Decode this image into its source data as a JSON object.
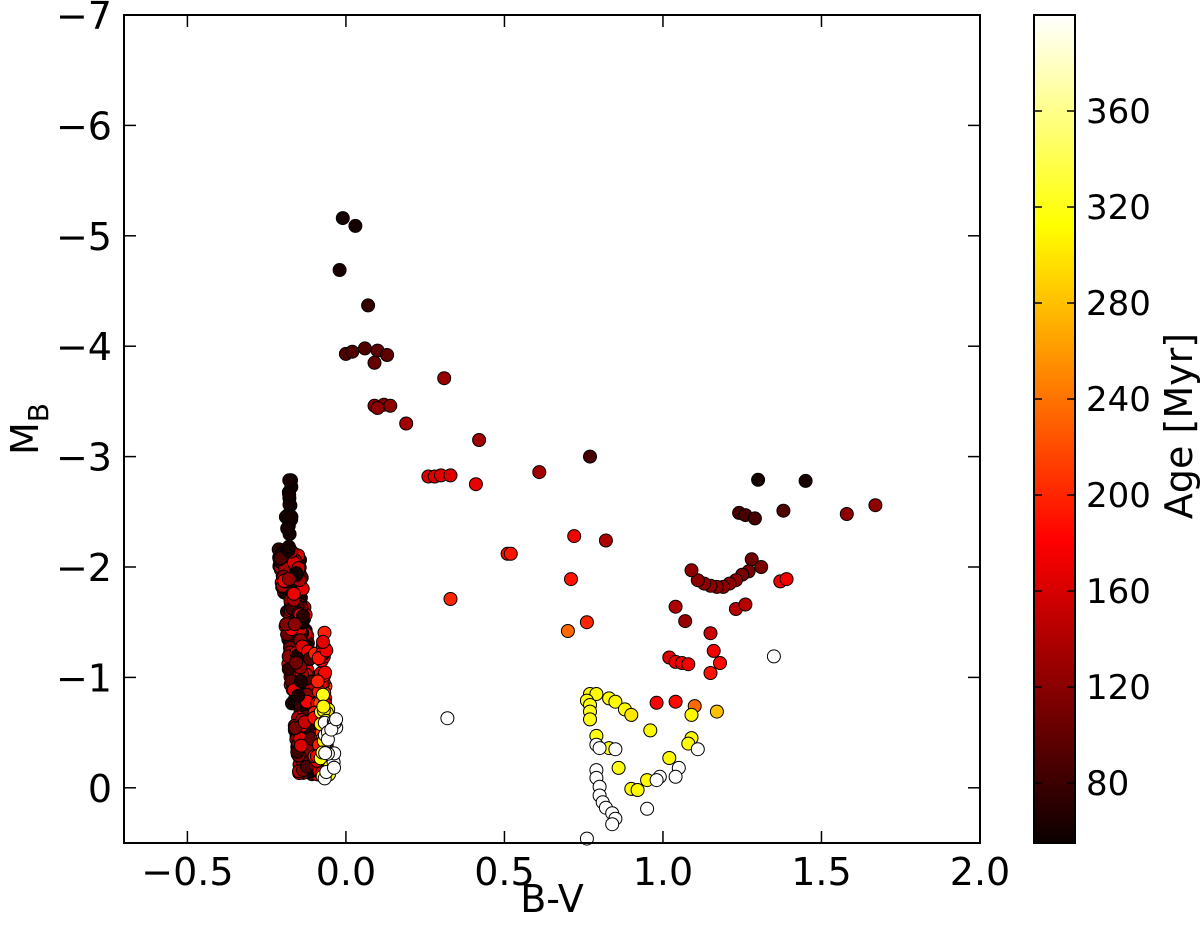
{
  "chart_data": {
    "type": "scatter",
    "title": "",
    "xlabel": "B-V",
    "ylabel": "M",
    "ylabel_sub": "B",
    "xlim": [
      -0.7,
      2.0
    ],
    "ylim": [
      0.5,
      -7.0
    ],
    "y_inverted": true,
    "xticks": [
      -0.5,
      0.0,
      0.5,
      1.0,
      1.5,
      2.0
    ],
    "xtick_labels": [
      "−0.5",
      "0.0",
      "0.5",
      "1.0",
      "1.5",
      "2.0"
    ],
    "yticks": [
      0,
      -1,
      -2,
      -3,
      -4,
      -5,
      -6,
      -7
    ],
    "ytick_labels": [
      "0",
      "−1",
      "−2",
      "−3",
      "−4",
      "−5",
      "−6",
      "−7"
    ],
    "grid": false,
    "colorbar": {
      "label": "Age [Myr]",
      "range": [
        55,
        400
      ],
      "ticks": [
        80,
        120,
        160,
        200,
        240,
        280,
        320,
        360
      ],
      "tick_labels": [
        "80",
        "120",
        "160",
        "200",
        "240",
        "280",
        "320",
        "360"
      ],
      "colormap": "hot"
    },
    "points": [
      [
        -0.01,
        -5.16,
        60
      ],
      [
        0.03,
        -5.09,
        60
      ],
      [
        -0.02,
        -4.69,
        62
      ],
      [
        0.07,
        -4.37,
        75
      ],
      [
        0.0,
        -3.93,
        90
      ],
      [
        0.02,
        -3.95,
        90
      ],
      [
        0.06,
        -3.98,
        90
      ],
      [
        0.1,
        -3.96,
        95
      ],
      [
        0.13,
        -3.92,
        95
      ],
      [
        0.09,
        -3.85,
        100
      ],
      [
        0.09,
        -3.46,
        120
      ],
      [
        0.12,
        -3.47,
        120
      ],
      [
        0.14,
        -3.46,
        120
      ],
      [
        0.1,
        -3.44,
        120
      ],
      [
        0.19,
        -3.3,
        130
      ],
      [
        0.31,
        -3.71,
        125
      ],
      [
        0.42,
        -3.15,
        130
      ],
      [
        0.26,
        -2.82,
        160
      ],
      [
        0.28,
        -2.82,
        160
      ],
      [
        0.3,
        -2.83,
        160
      ],
      [
        0.33,
        -2.83,
        160
      ],
      [
        0.41,
        -2.75,
        165
      ],
      [
        0.61,
        -2.86,
        130
      ],
      [
        0.77,
        -3.0,
        85
      ],
      [
        0.72,
        -2.28,
        170
      ],
      [
        0.82,
        -2.24,
        135
      ],
      [
        0.51,
        -2.12,
        185
      ],
      [
        0.52,
        -2.12,
        190
      ],
      [
        0.71,
        -1.89,
        190
      ],
      [
        0.33,
        -1.71,
        200
      ],
      [
        0.76,
        -1.5,
        200
      ],
      [
        0.7,
        -1.42,
        235
      ],
      [
        0.32,
        -0.63,
        400
      ],
      [
        1.35,
        -1.19,
        400
      ],
      [
        1.3,
        -2.79,
        60
      ],
      [
        1.45,
        -2.78,
        60
      ],
      [
        1.38,
        -2.51,
        90
      ],
      [
        1.58,
        -2.48,
        120
      ],
      [
        1.67,
        -2.56,
        120
      ],
      [
        1.24,
        -2.49,
        85
      ],
      [
        1.26,
        -2.47,
        85
      ],
      [
        1.29,
        -2.44,
        85
      ],
      [
        1.28,
        -2.07,
        105
      ],
      [
        1.31,
        -2.0,
        110
      ],
      [
        1.27,
        -1.96,
        110
      ],
      [
        1.25,
        -1.93,
        110
      ],
      [
        1.23,
        -1.88,
        120
      ],
      [
        1.21,
        -1.85,
        120
      ],
      [
        1.19,
        -1.82,
        120
      ],
      [
        1.17,
        -1.82,
        120
      ],
      [
        1.15,
        -1.83,
        120
      ],
      [
        1.13,
        -1.85,
        120
      ],
      [
        1.11,
        -1.88,
        120
      ],
      [
        1.09,
        -1.97,
        120
      ],
      [
        1.23,
        -1.62,
        140
      ],
      [
        1.26,
        -1.66,
        140
      ],
      [
        1.37,
        -1.87,
        170
      ],
      [
        1.39,
        -1.89,
        170
      ],
      [
        1.04,
        -1.64,
        135
      ],
      [
        1.07,
        -1.51,
        125
      ],
      [
        1.15,
        -1.4,
        150
      ],
      [
        1.16,
        -1.24,
        170
      ],
      [
        1.18,
        -1.13,
        185
      ],
      [
        1.15,
        -1.04,
        190
      ],
      [
        1.02,
        -1.18,
        160
      ],
      [
        1.04,
        -1.14,
        165
      ],
      [
        1.06,
        -1.13,
        165
      ],
      [
        1.08,
        -1.12,
        170
      ],
      [
        0.98,
        -0.77,
        180
      ],
      [
        1.04,
        -0.78,
        185
      ],
      [
        1.1,
        -0.74,
        235
      ],
      [
        1.17,
        -0.69,
        280
      ],
      [
        0.77,
        -0.85,
        310
      ],
      [
        0.79,
        -0.85,
        310
      ],
      [
        0.76,
        -0.79,
        315
      ],
      [
        0.77,
        -0.75,
        320
      ],
      [
        0.77,
        -0.69,
        320
      ],
      [
        0.77,
        -0.62,
        320
      ],
      [
        0.83,
        -0.81,
        310
      ],
      [
        0.85,
        -0.78,
        310
      ],
      [
        0.88,
        -0.71,
        310
      ],
      [
        0.9,
        -0.66,
        300
      ],
      [
        0.96,
        -0.52,
        310
      ],
      [
        1.09,
        -0.66,
        310
      ],
      [
        1.09,
        -0.45,
        310
      ],
      [
        1.08,
        -0.4,
        310
      ],
      [
        1.02,
        -0.27,
        310
      ],
      [
        0.79,
        -0.47,
        315
      ],
      [
        0.83,
        -0.36,
        320
      ],
      [
        0.86,
        -0.18,
        320
      ],
      [
        0.95,
        -0.07,
        310
      ],
      [
        0.9,
        0.01,
        310
      ],
      [
        0.92,
        0.02,
        310
      ],
      [
        0.79,
        -0.39,
        400
      ],
      [
        0.8,
        -0.36,
        400
      ],
      [
        0.85,
        -0.35,
        400
      ],
      [
        1.11,
        -0.35,
        400
      ],
      [
        1.05,
        -0.18,
        400
      ],
      [
        0.79,
        -0.16,
        400
      ],
      [
        0.79,
        -0.09,
        400
      ],
      [
        0.8,
        -0.01,
        400
      ],
      [
        0.8,
        0.07,
        400
      ],
      [
        0.81,
        0.13,
        400
      ],
      [
        0.82,
        0.18,
        400
      ],
      [
        0.84,
        0.23,
        400
      ],
      [
        0.85,
        0.28,
        400
      ],
      [
        0.84,
        0.33,
        400
      ],
      [
        1.04,
        -0.1,
        400
      ],
      [
        0.99,
        -0.1,
        400
      ],
      [
        0.98,
        -0.07,
        400
      ],
      [
        0.95,
        0.19,
        400
      ],
      [
        0.76,
        0.46,
        400
      ]
    ]
  }
}
